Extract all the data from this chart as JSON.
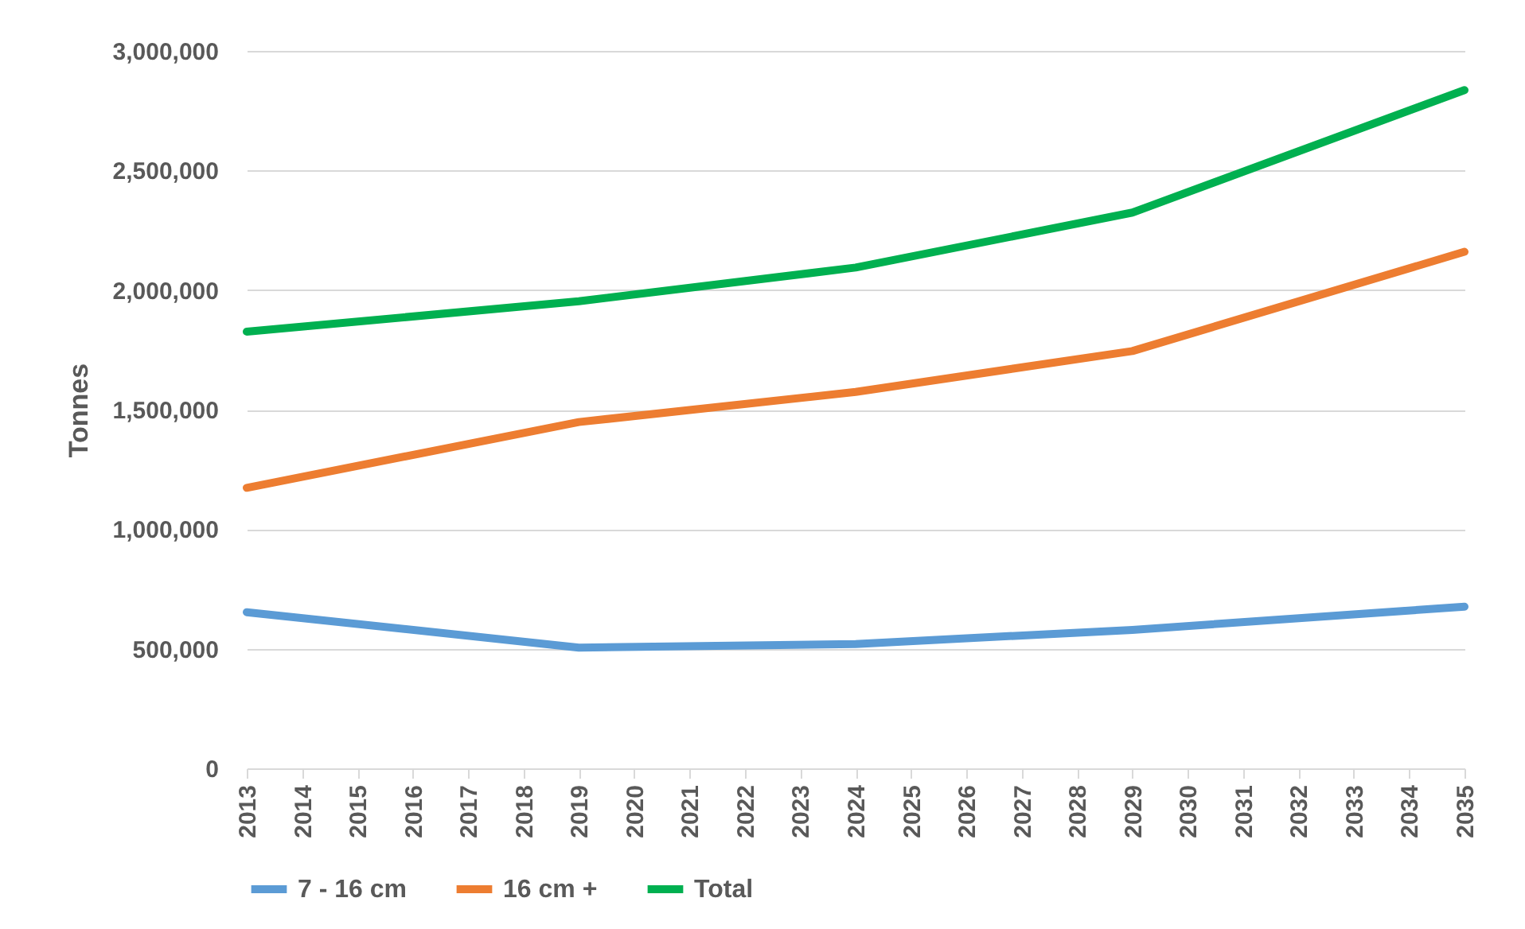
{
  "chart_data": {
    "type": "line",
    "ylabel": "Tonnes",
    "xlim": [
      2013,
      2035
    ],
    "xticks": [
      2013,
      2014,
      2015,
      2016,
      2017,
      2018,
      2019,
      2020,
      2021,
      2022,
      2023,
      2024,
      2025,
      2026,
      2027,
      2028,
      2029,
      2030,
      2031,
      2032,
      2033,
      2034,
      2035
    ],
    "ylim": [
      0,
      3000000
    ],
    "yticks": [
      0,
      {
        "value": 500000,
        "label": "500,000"
      },
      {
        "value": 1000000,
        "label": "1,000,000"
      },
      {
        "value": 1500000,
        "label": "1,500,000"
      },
      {
        "value": 2000000,
        "label": "2,000,000"
      },
      {
        "value": 2500000,
        "label": "2,500,000"
      },
      {
        "value": 3000000,
        "label": "3,000,000"
      }
    ],
    "grid": "y",
    "legend": "bottom",
    "line_style": "solid",
    "marker": "none",
    "series": [
      {
        "name": "7 - 16 cm",
        "color": "#5b9bd5",
        "x": [
          2013,
          2019,
          2024,
          2029,
          2035
        ],
        "values": [
          653000,
          505000,
          520000,
          579000,
          676000
        ]
      },
      {
        "name": "16 cm +",
        "color": "#ed7d31",
        "x": [
          2013,
          2019,
          2024,
          2029,
          2035
        ],
        "values": [
          1173000,
          1448000,
          1574000,
          1745000,
          2160000
        ]
      },
      {
        "name": "Total",
        "color": "#00b050",
        "x": [
          2013,
          2019,
          2024,
          2029,
          2035
        ],
        "values": [
          1826000,
          1953000,
          2094000,
          2324000,
          2836000
        ]
      }
    ]
  }
}
